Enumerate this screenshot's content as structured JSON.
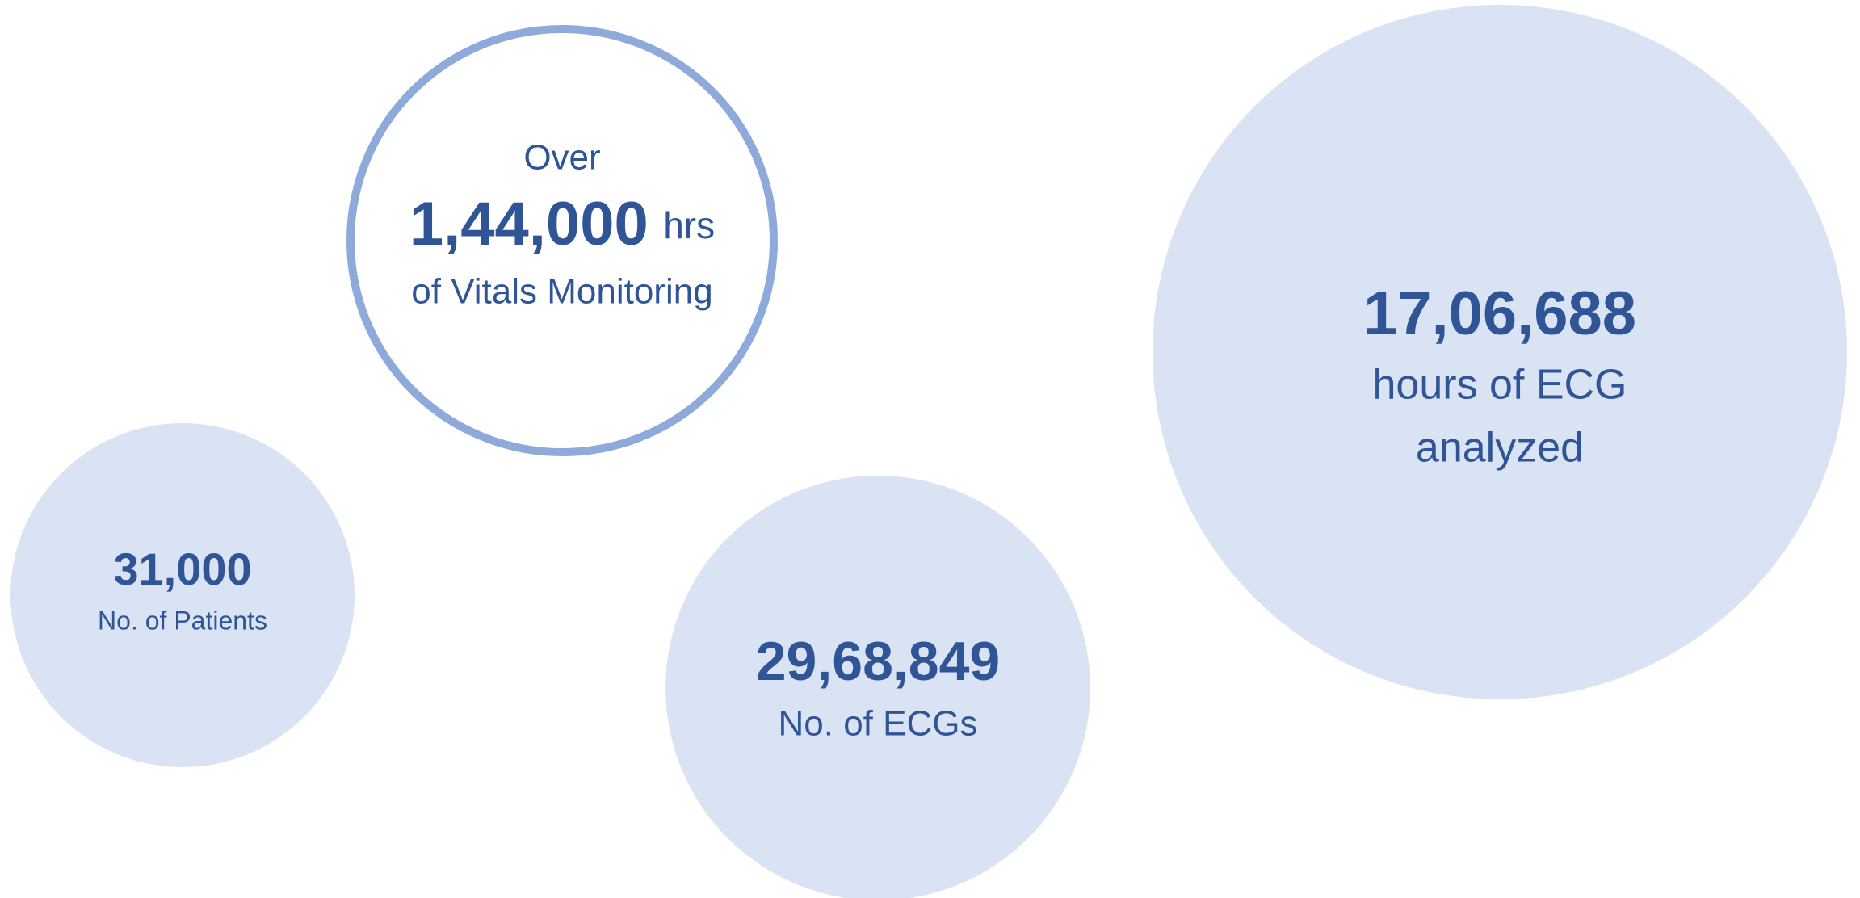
{
  "stats": [
    {
      "prefix": "Over",
      "value": "1,44,000",
      "unit": "hrs",
      "label": "of Vitals Monitoring"
    },
    {
      "value": "31,000",
      "label": "No. of Patients"
    },
    {
      "value": "29,68,849",
      "label": "No. of ECGs"
    },
    {
      "value": "17,06,688",
      "label_lines": [
        "hours of ECG",
        "analyzed"
      ]
    }
  ]
}
